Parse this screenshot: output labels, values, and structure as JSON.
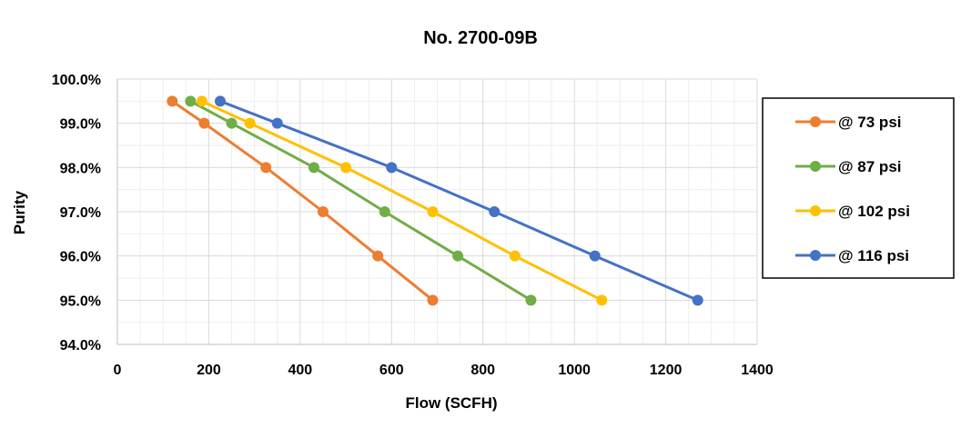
{
  "chart_data": {
    "type": "line",
    "title": "No. 2700-09B",
    "xlabel": "Flow (SCFH)",
    "ylabel": "Purity",
    "xlim": [
      0,
      1400
    ],
    "ylim": [
      94,
      100
    ],
    "x_ticks": [
      0,
      200,
      400,
      600,
      800,
      1000,
      1200,
      1400
    ],
    "x_tick_labels": [
      "0",
      "200",
      "400",
      "600",
      "800",
      "1000",
      "1200",
      "1400"
    ],
    "y_ticks": [
      94,
      95,
      96,
      97,
      98,
      99,
      100
    ],
    "y_tick_labels": [
      "94.0%",
      "95.0%",
      "96.0%",
      "97.0%",
      "98.0%",
      "99.0%",
      "100.0%"
    ],
    "grid": true,
    "legend_position": "right",
    "series": [
      {
        "name": "@ 73 psi",
        "color": "#ED7D31",
        "points": [
          [
            120,
            99.5
          ],
          [
            190,
            99.0
          ],
          [
            325,
            98.0
          ],
          [
            450,
            97.0
          ],
          [
            570,
            96.0
          ],
          [
            690,
            95.0
          ]
        ]
      },
      {
        "name": "@ 87 psi",
        "color": "#70AD47",
        "points": [
          [
            160,
            99.5
          ],
          [
            250,
            99.0
          ],
          [
            430,
            98.0
          ],
          [
            585,
            97.0
          ],
          [
            745,
            96.0
          ],
          [
            905,
            95.0
          ]
        ]
      },
      {
        "name": "@ 102 psi",
        "color": "#FFC000",
        "points": [
          [
            185,
            99.5
          ],
          [
            290,
            99.0
          ],
          [
            500,
            98.0
          ],
          [
            690,
            97.0
          ],
          [
            870,
            96.0
          ],
          [
            1060,
            95.0
          ]
        ]
      },
      {
        "name": "@ 116 psi",
        "color": "#4472C4",
        "points": [
          [
            225,
            99.5
          ],
          [
            350,
            99.0
          ],
          [
            600,
            98.0
          ],
          [
            825,
            97.0
          ],
          [
            1045,
            96.0
          ],
          [
            1270,
            95.0
          ]
        ]
      }
    ]
  }
}
